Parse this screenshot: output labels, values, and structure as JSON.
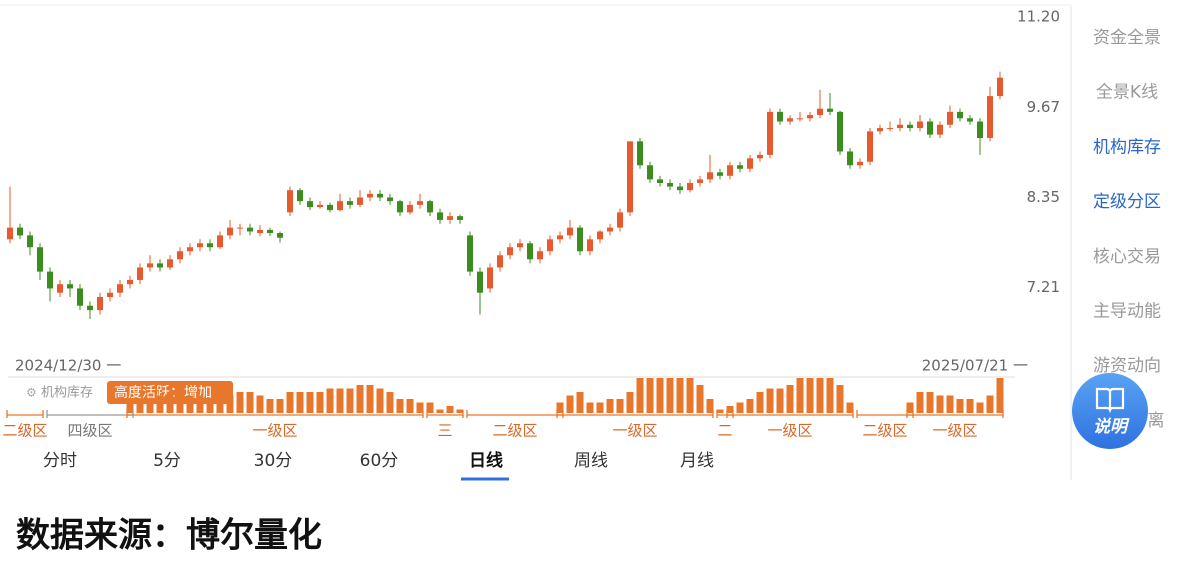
{
  "chart_data": {
    "type": "candlestick",
    "up_color": "#e55b2f",
    "down_color": "#3d8c1f",
    "log_scale": true,
    "ylim": [
      6.46,
      11.37
    ],
    "yticks": [
      7.21,
      8.35,
      9.67,
      {
        "value": 11.2,
        "label": "11.20"
      }
    ],
    "start_label": "2024/12/30 一",
    "end_label": "2025/07/21 一",
    "ohlc": [
      [
        7.8,
        8.5,
        7.75,
        7.95
      ],
      [
        7.95,
        8.0,
        7.8,
        7.85
      ],
      [
        7.85,
        7.9,
        7.6,
        7.7
      ],
      [
        7.7,
        7.75,
        7.3,
        7.4
      ],
      [
        7.4,
        7.45,
        7.05,
        7.2
      ],
      [
        7.15,
        7.3,
        7.1,
        7.25
      ],
      [
        7.25,
        7.3,
        7.1,
        7.2
      ],
      [
        7.2,
        7.25,
        6.95,
        7.0
      ],
      [
        7.0,
        7.05,
        6.85,
        6.95
      ],
      [
        6.95,
        7.15,
        6.9,
        7.1
      ],
      [
        7.1,
        7.2,
        7.05,
        7.15
      ],
      [
        7.15,
        7.3,
        7.1,
        7.25
      ],
      [
        7.25,
        7.35,
        7.2,
        7.3
      ],
      [
        7.3,
        7.5,
        7.25,
        7.45
      ],
      [
        7.45,
        7.6,
        7.4,
        7.5
      ],
      [
        7.5,
        7.55,
        7.4,
        7.45
      ],
      [
        7.45,
        7.6,
        7.42,
        7.55
      ],
      [
        7.55,
        7.7,
        7.5,
        7.65
      ],
      [
        7.65,
        7.75,
        7.6,
        7.7
      ],
      [
        7.7,
        7.8,
        7.65,
        7.75
      ],
      [
        7.75,
        7.8,
        7.65,
        7.7
      ],
      [
        7.7,
        7.9,
        7.68,
        7.85
      ],
      [
        7.85,
        8.05,
        7.8,
        7.95
      ],
      [
        7.95,
        8.0,
        7.85,
        7.95
      ],
      [
        7.95,
        8.0,
        7.85,
        7.9
      ],
      [
        7.88,
        7.98,
        7.84,
        7.92
      ],
      [
        7.92,
        7.95,
        7.84,
        7.88
      ],
      [
        7.88,
        7.9,
        7.76,
        7.82
      ],
      [
        8.15,
        8.5,
        8.1,
        8.45
      ],
      [
        8.45,
        8.48,
        8.25,
        8.3
      ],
      [
        8.3,
        8.35,
        8.18,
        8.22
      ],
      [
        8.22,
        8.3,
        8.2,
        8.25
      ],
      [
        8.25,
        8.28,
        8.15,
        8.18
      ],
      [
        8.18,
        8.4,
        8.16,
        8.3
      ],
      [
        8.3,
        8.35,
        8.2,
        8.25
      ],
      [
        8.25,
        8.45,
        8.22,
        8.35
      ],
      [
        8.35,
        8.45,
        8.3,
        8.4
      ],
      [
        8.4,
        8.45,
        8.3,
        8.35
      ],
      [
        8.35,
        8.4,
        8.25,
        8.3
      ],
      [
        8.3,
        8.32,
        8.1,
        8.15
      ],
      [
        8.15,
        8.3,
        8.12,
        8.25
      ],
      [
        8.25,
        8.4,
        8.2,
        8.3
      ],
      [
        8.3,
        8.32,
        8.1,
        8.15
      ],
      [
        8.15,
        8.2,
        8.0,
        8.05
      ],
      [
        8.05,
        8.15,
        8.0,
        8.1
      ],
      [
        8.1,
        8.12,
        8.0,
        8.05
      ],
      [
        7.85,
        7.9,
        7.35,
        7.4
      ],
      [
        7.4,
        7.45,
        6.9,
        7.15
      ],
      [
        7.2,
        7.5,
        7.15,
        7.45
      ],
      [
        7.45,
        7.65,
        7.4,
        7.6
      ],
      [
        7.6,
        7.75,
        7.55,
        7.7
      ],
      [
        7.7,
        7.8,
        7.65,
        7.75
      ],
      [
        7.75,
        7.78,
        7.5,
        7.55
      ],
      [
        7.55,
        7.7,
        7.5,
        7.65
      ],
      [
        7.65,
        7.85,
        7.6,
        7.8
      ],
      [
        7.8,
        7.9,
        7.75,
        7.85
      ],
      [
        7.85,
        8.05,
        7.8,
        7.95
      ],
      [
        7.95,
        7.98,
        7.6,
        7.65
      ],
      [
        7.65,
        7.85,
        7.6,
        7.8
      ],
      [
        7.8,
        7.92,
        7.75,
        7.9
      ],
      [
        7.9,
        8.0,
        7.85,
        7.95
      ],
      [
        7.95,
        8.2,
        7.9,
        8.15
      ],
      [
        8.15,
        9.15,
        8.1,
        9.15
      ],
      [
        9.15,
        9.2,
        8.75,
        8.8
      ],
      [
        8.8,
        8.85,
        8.55,
        8.6
      ],
      [
        8.6,
        8.65,
        8.5,
        8.55
      ],
      [
        8.55,
        8.6,
        8.45,
        8.5
      ],
      [
        8.5,
        8.55,
        8.4,
        8.45
      ],
      [
        8.45,
        8.6,
        8.42,
        8.55
      ],
      [
        8.55,
        8.65,
        8.5,
        8.6
      ],
      [
        8.6,
        8.95,
        8.55,
        8.7
      ],
      [
        8.7,
        8.75,
        8.6,
        8.65
      ],
      [
        8.65,
        8.85,
        8.6,
        8.8
      ],
      [
        8.8,
        8.85,
        8.7,
        8.75
      ],
      [
        8.75,
        8.95,
        8.7,
        8.9
      ],
      [
        8.9,
        9.0,
        8.85,
        8.95
      ],
      [
        8.95,
        9.65,
        8.9,
        9.6
      ],
      [
        9.6,
        9.65,
        9.4,
        9.45
      ],
      [
        9.45,
        9.55,
        9.4,
        9.5
      ],
      [
        9.5,
        9.6,
        9.45,
        9.5
      ],
      [
        9.5,
        9.6,
        9.45,
        9.55
      ],
      [
        9.55,
        9.95,
        9.5,
        9.65
      ],
      [
        9.65,
        9.9,
        9.55,
        9.6
      ],
      [
        9.6,
        9.62,
        8.95,
        9.0
      ],
      [
        9.0,
        9.05,
        8.75,
        8.8
      ],
      [
        8.8,
        8.9,
        8.75,
        8.85
      ],
      [
        8.85,
        9.35,
        8.8,
        9.3
      ],
      [
        9.3,
        9.4,
        9.25,
        9.35
      ],
      [
        9.35,
        9.45,
        9.3,
        9.35
      ],
      [
        9.35,
        9.5,
        9.3,
        9.4
      ],
      [
        9.4,
        9.45,
        9.3,
        9.35
      ],
      [
        9.35,
        9.55,
        9.3,
        9.45
      ],
      [
        9.45,
        9.5,
        9.2,
        9.25
      ],
      [
        9.25,
        9.45,
        9.2,
        9.4
      ],
      [
        9.4,
        9.7,
        9.35,
        9.6
      ],
      [
        9.6,
        9.65,
        9.45,
        9.5
      ],
      [
        9.5,
        9.55,
        9.4,
        9.45
      ],
      [
        9.45,
        9.5,
        8.95,
        9.2
      ],
      [
        9.2,
        10.0,
        9.15,
        9.85
      ],
      [
        9.85,
        10.25,
        9.8,
        10.15
      ]
    ],
    "activity": {
      "color": "#e8772e",
      "ylim": [
        0,
        10
      ],
      "values": [
        0,
        0,
        0,
        0,
        0,
        0,
        0,
        0,
        0,
        0,
        0,
        0,
        3,
        4,
        4,
        5,
        6,
        6,
        5,
        5,
        4,
        4,
        5,
        6,
        6,
        5,
        4,
        4,
        6,
        6,
        6,
        6,
        7,
        7,
        7,
        8,
        8,
        7,
        6,
        4,
        4,
        3,
        3,
        1,
        2,
        1,
        0,
        0,
        0,
        0,
        0,
        0,
        0,
        0,
        0,
        3,
        5,
        6,
        3,
        3,
        4,
        4,
        6,
        10,
        10,
        10,
        10,
        10,
        10,
        8,
        4,
        1,
        2,
        3,
        4,
        6,
        7,
        7,
        8,
        10,
        10,
        10,
        10,
        8,
        3,
        0,
        0,
        0,
        0,
        0,
        3,
        6,
        6,
        5,
        5,
        4,
        4,
        3,
        5,
        10
      ]
    },
    "zones": [
      {
        "label": "二级区",
        "start": 0,
        "end": 3,
        "color": "#e8772e"
      },
      {
        "label": "四级区",
        "start": 4,
        "end": 12,
        "color": "#999999"
      },
      {
        "label": "一级区",
        "start": 12,
        "end": 41,
        "color": "#e8772e"
      },
      {
        "label": "三",
        "start": 42,
        "end": 45,
        "color": "#e8772e"
      },
      {
        "label": "二级区",
        "start": 46,
        "end": 55,
        "color": "#e8772e"
      },
      {
        "label": "一级区",
        "start": 55,
        "end": 70,
        "color": "#e8772e"
      },
      {
        "label": "二",
        "start": 71,
        "end": 72,
        "color": "#e8772e"
      },
      {
        "label": "一级区",
        "start": 72,
        "end": 84,
        "color": "#e8772e"
      },
      {
        "label": "二级区",
        "start": 85,
        "end": 90,
        "color": "#e8772e"
      },
      {
        "label": "一级区",
        "start": 90,
        "end": 99,
        "color": "#e8772e"
      }
    ]
  },
  "legend": {
    "gear_label": "机构库存",
    "tag": "高度活跃：增加"
  },
  "tabs": [
    "分时",
    "5分",
    "30分",
    "60分",
    "日线",
    "周线",
    "月线"
  ],
  "active_tab": 4,
  "sidebar": [
    "资金全景",
    "全景K线",
    "机构库存",
    "定级分区",
    "核心交易",
    "主导动能",
    "游资动向",
    "离"
  ],
  "sidebar_active": [
    2,
    3
  ],
  "help_button": "说明",
  "footer": "数据来源：博尔量化"
}
